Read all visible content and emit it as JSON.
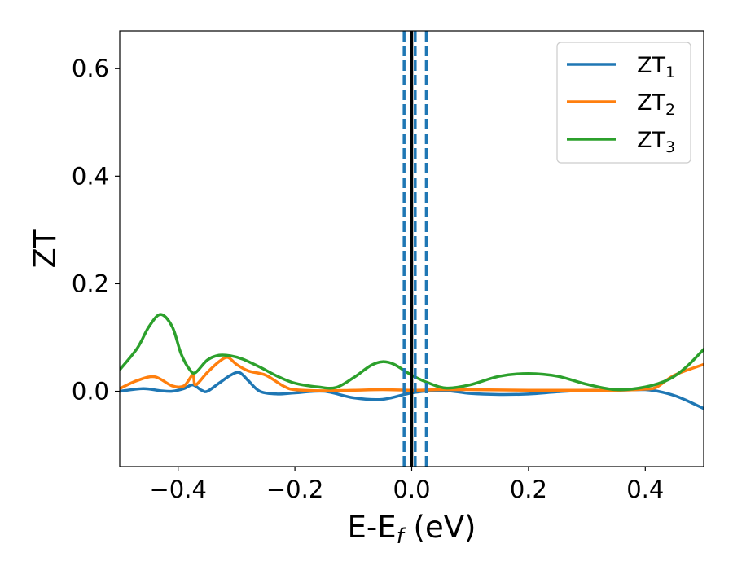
{
  "chart_data": {
    "type": "line",
    "title": "",
    "xlabel": "E-E",
    "xlabel_sub": "f",
    "xlabel_suffix": " (eV)",
    "ylabel": "ZT",
    "xlim": [
      -0.5,
      0.5
    ],
    "ylim": [
      -0.14,
      0.67
    ],
    "x_ticks": [
      -0.4,
      -0.2,
      0.0,
      0.2,
      0.4
    ],
    "x_tick_labels": [
      "−0.4",
      "−0.2",
      "0.0",
      "0.2",
      "0.4"
    ],
    "y_ticks": [
      0.0,
      0.2,
      0.4,
      0.6
    ],
    "y_tick_labels": [
      "0.0",
      "0.2",
      "0.4",
      "0.6"
    ],
    "grid": false,
    "legend_position": "top-right",
    "vertical_lines": [
      {
        "x": 0.0,
        "style": "solid",
        "color": "#000000"
      },
      {
        "x": -0.013,
        "style": "dashed",
        "color": "#1f77b4"
      },
      {
        "x": 0.006,
        "style": "dashed",
        "color": "#1f77b4"
      },
      {
        "x": 0.025,
        "style": "dashed",
        "color": "#1f77b4"
      }
    ],
    "series": [
      {
        "name": "ZT",
        "name_sub": "1",
        "color": "#1f77b4",
        "x": [
          -0.5,
          -0.46,
          -0.43,
          -0.41,
          -0.39,
          -0.375,
          -0.36,
          -0.35,
          -0.33,
          -0.31,
          -0.295,
          -0.28,
          -0.26,
          -0.23,
          -0.2,
          -0.15,
          -0.1,
          -0.05,
          0.0,
          0.05,
          0.1,
          0.15,
          0.2,
          0.25,
          0.3,
          0.35,
          0.4,
          0.43,
          0.46,
          0.5
        ],
        "y": [
          0.0,
          0.005,
          0.001,
          0.0,
          0.005,
          0.012,
          0.002,
          0.0,
          0.015,
          0.03,
          0.035,
          0.02,
          0.0,
          -0.005,
          -0.003,
          0.0,
          -0.012,
          -0.015,
          -0.003,
          0.002,
          -0.004,
          -0.006,
          -0.005,
          -0.001,
          0.002,
          0.002,
          0.003,
          -0.002,
          -0.012,
          -0.032
        ]
      },
      {
        "name": "ZT",
        "name_sub": "2",
        "color": "#ff7f0e",
        "x": [
          -0.5,
          -0.47,
          -0.44,
          -0.41,
          -0.39,
          -0.375,
          -0.37,
          -0.35,
          -0.33,
          -0.315,
          -0.3,
          -0.28,
          -0.25,
          -0.22,
          -0.2,
          -0.15,
          -0.1,
          -0.05,
          0.0,
          0.05,
          0.1,
          0.2,
          0.3,
          0.35,
          0.4,
          0.42,
          0.45,
          0.5
        ],
        "y": [
          0.005,
          0.02,
          0.027,
          0.01,
          0.01,
          0.03,
          0.012,
          0.035,
          0.055,
          0.063,
          0.05,
          0.038,
          0.03,
          0.01,
          0.003,
          0.001,
          0.002,
          0.003,
          0.002,
          0.003,
          0.003,
          0.002,
          0.002,
          0.002,
          0.004,
          0.008,
          0.03,
          0.05
        ]
      },
      {
        "name": "ZT",
        "name_sub": "3",
        "color": "#2ca02c",
        "x": [
          -0.5,
          -0.47,
          -0.45,
          -0.43,
          -0.41,
          -0.395,
          -0.38,
          -0.37,
          -0.35,
          -0.33,
          -0.31,
          -0.29,
          -0.26,
          -0.23,
          -0.2,
          -0.16,
          -0.13,
          -0.1,
          -0.07,
          -0.05,
          -0.03,
          0.0,
          0.03,
          0.06,
          0.1,
          0.15,
          0.2,
          0.25,
          0.3,
          0.35,
          0.4,
          0.44,
          0.47,
          0.5
        ],
        "y": [
          0.04,
          0.08,
          0.12,
          0.143,
          0.12,
          0.07,
          0.04,
          0.035,
          0.058,
          0.067,
          0.066,
          0.06,
          0.045,
          0.028,
          0.015,
          0.008,
          0.007,
          0.025,
          0.048,
          0.055,
          0.05,
          0.03,
          0.015,
          0.006,
          0.012,
          0.028,
          0.033,
          0.028,
          0.013,
          0.003,
          0.008,
          0.022,
          0.045,
          0.078
        ]
      }
    ]
  }
}
